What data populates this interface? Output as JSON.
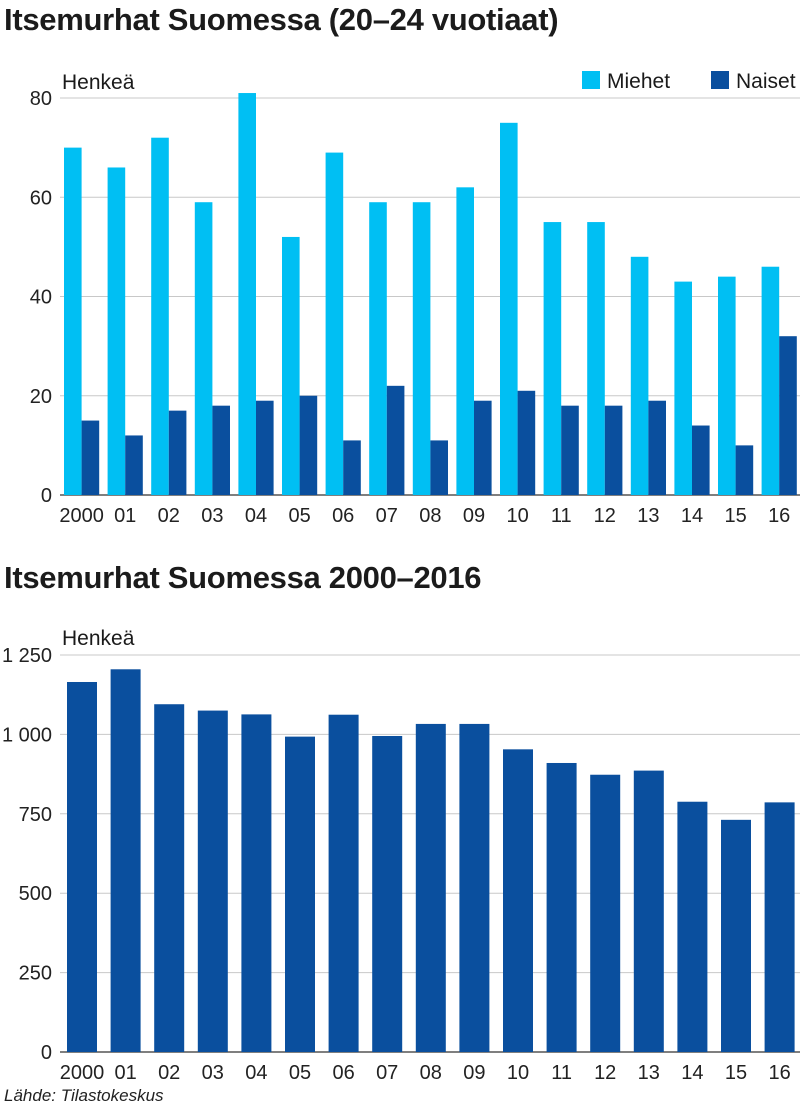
{
  "source": "Lähde: Tilastokeskus",
  "chart_data": [
    {
      "type": "bar",
      "title": "Itsemurhat Suomessa (20–24 vuotiaat)",
      "ylabel": "Henkeä",
      "categories": [
        "2000",
        "01",
        "02",
        "03",
        "04",
        "05",
        "06",
        "07",
        "08",
        "09",
        "10",
        "11",
        "12",
        "13",
        "14",
        "15",
        "16"
      ],
      "series": [
        {
          "name": "Miehet",
          "color": "#00bff3",
          "values": [
            70,
            66,
            72,
            59,
            81,
            52,
            69,
            59,
            59,
            62,
            75,
            55,
            55,
            48,
            43,
            44,
            46
          ]
        },
        {
          "name": "Naiset",
          "color": "#0a4f9e",
          "values": [
            15,
            12,
            17,
            18,
            19,
            20,
            11,
            22,
            11,
            19,
            21,
            18,
            18,
            19,
            14,
            10,
            32
          ]
        }
      ],
      "yticks": [
        "0",
        "20",
        "40",
        "60",
        "80"
      ],
      "ylim": [
        0,
        80
      ],
      "grid": true,
      "legend": "top-right"
    },
    {
      "type": "bar",
      "title": "Itsemurhat Suomessa 2000–2016",
      "ylabel": "Henkeä",
      "categories": [
        "2000",
        "01",
        "02",
        "03",
        "04",
        "05",
        "06",
        "07",
        "08",
        "09",
        "10",
        "11",
        "12",
        "13",
        "14",
        "15",
        "16"
      ],
      "series": [
        {
          "color": "#0a4f9e",
          "values": [
            1165,
            1205,
            1095,
            1075,
            1063,
            993,
            1062,
            995,
            1033,
            1033,
            953,
            910,
            873,
            886,
            788,
            731,
            786
          ]
        }
      ],
      "yticks": [
        "0",
        "250",
        "500",
        "750",
        "1 000",
        "1 250"
      ],
      "ylim": [
        0,
        1250
      ],
      "grid": true
    }
  ]
}
